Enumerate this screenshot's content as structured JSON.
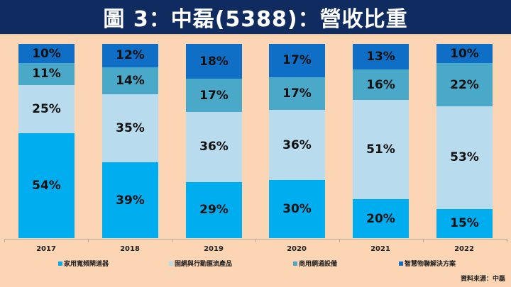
{
  "title": "圖 3：中磊(5388)：營收比重",
  "colors": {
    "background": "#fcd5b5",
    "title_bar": "#0f2b5f",
    "series": [
      "#00adef",
      "#b8dced",
      "#4aa8c8",
      "#0f6fc6"
    ]
  },
  "legend": [
    {
      "label": "家用寬頻閘道器",
      "color": "#00adef"
    },
    {
      "label": "固網與行動匯流產品",
      "color": "#b8dced"
    },
    {
      "label": "商用網通設備",
      "color": "#4aa8c8"
    },
    {
      "label": "智慧物聯解決方案",
      "color": "#0f6fc6"
    }
  ],
  "source": "資料來源：中磊",
  "chart_data": {
    "type": "bar",
    "stacked": true,
    "normalized_100": true,
    "title": "圖 3：中磊(5388)：營收比重",
    "xlabel": "",
    "ylabel": "",
    "ylim": [
      0,
      100
    ],
    "grid": false,
    "legend_position": "bottom",
    "categories": [
      "2017",
      "2018",
      "2019",
      "2020",
      "2021",
      "2022"
    ],
    "series": [
      {
        "name": "家用寬頻閘道器",
        "values": [
          54,
          39,
          29,
          30,
          20,
          15
        ]
      },
      {
        "name": "固網與行動匯流產品",
        "values": [
          25,
          35,
          36,
          36,
          51,
          53
        ]
      },
      {
        "name": "商用網通設備",
        "values": [
          11,
          14,
          17,
          17,
          16,
          22
        ]
      },
      {
        "name": "智慧物聯解決方案",
        "values": [
          10,
          12,
          18,
          17,
          13,
          10
        ]
      }
    ],
    "data_labels": [
      [
        "54%",
        "39%",
        "29%",
        "30%",
        "20%",
        "15%"
      ],
      [
        "25%",
        "35%",
        "36%",
        "36%",
        "51%",
        "53%"
      ],
      [
        "11%",
        "14%",
        "17%",
        "17%",
        "16%",
        "22%"
      ],
      [
        "10%",
        "12%",
        "18%",
        "17%",
        "13%",
        "10%"
      ]
    ]
  }
}
